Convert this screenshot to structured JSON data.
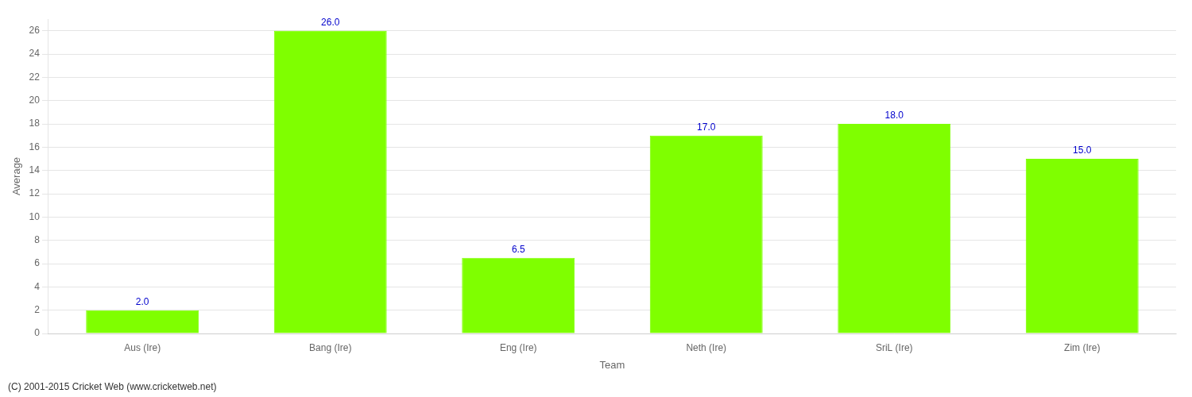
{
  "chart_data": {
    "type": "bar",
    "categories": [
      "Aus (Ire)",
      "Bang (Ire)",
      "Eng (Ire)",
      "Neth (Ire)",
      "SriL (Ire)",
      "Zim (Ire)"
    ],
    "values": [
      2.0,
      26.0,
      6.5,
      17.0,
      18.0,
      15.0
    ],
    "value_labels": [
      "2.0",
      "26.0",
      "6.5",
      "17.0",
      "18.0",
      "15.0"
    ],
    "data_labels": true,
    "color": "#7fff00",
    "xlabel": "Team",
    "ylabel": "Average",
    "ylim": [
      0,
      27
    ],
    "yticks": [
      0,
      2,
      4,
      6,
      8,
      10,
      12,
      14,
      16,
      18,
      20,
      22,
      24,
      26
    ],
    "grid": true,
    "annotations": [
      "(C) 2001-2015 Cricket Web (www.cricketweb.net)"
    ]
  }
}
